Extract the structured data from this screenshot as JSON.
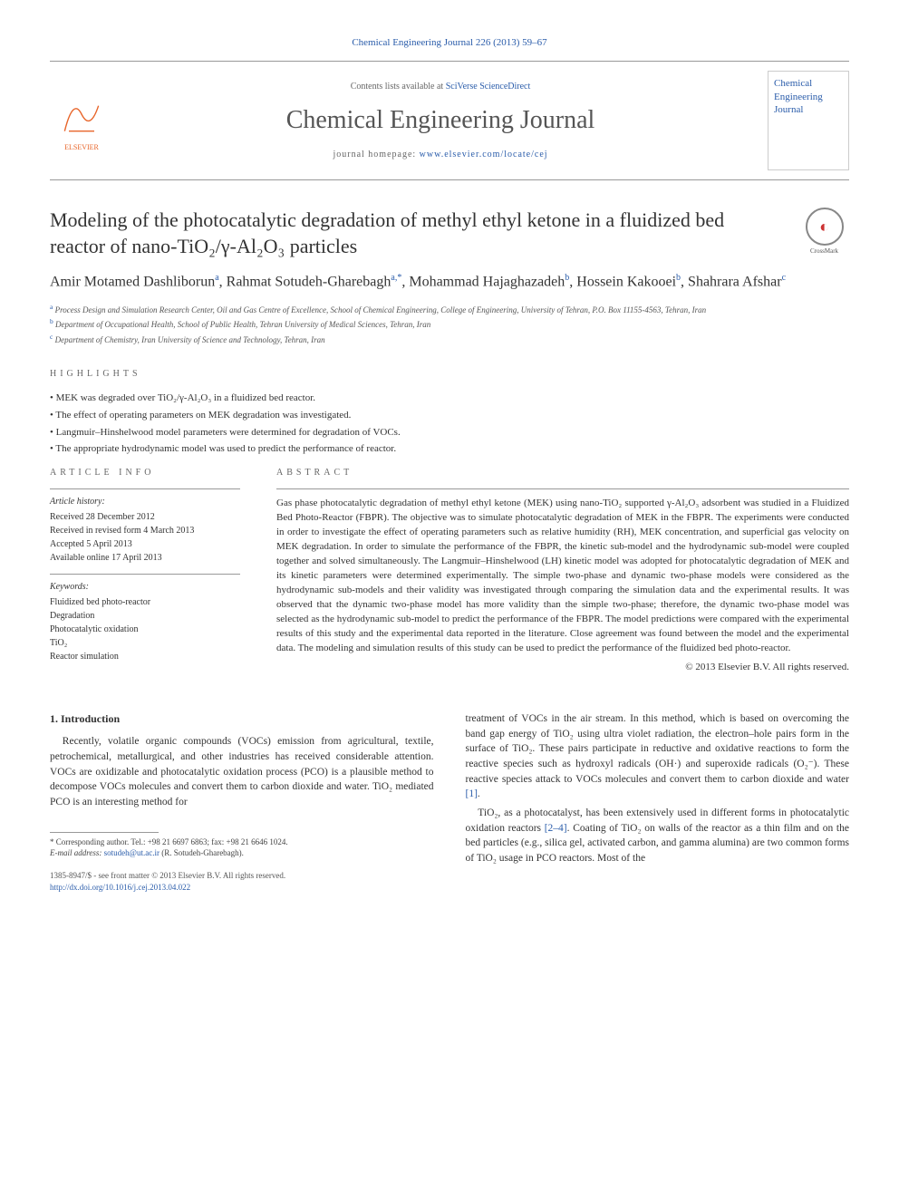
{
  "header": {
    "citation": "Chemical Engineering Journal 226 (2013) 59–67",
    "contents_prefix": "Contents lists available at ",
    "contents_link": "SciVerse ScienceDirect",
    "journal_name": "Chemical Engineering Journal",
    "homepage_prefix": "journal homepage: ",
    "homepage_link": "www.elsevier.com/locate/cej",
    "publisher_logo": "ELSEVIER",
    "cover_text": "Chemical\nEngineering\nJournal"
  },
  "crossmark_label": "CrossMark",
  "title": "Modeling of the photocatalytic degradation of methyl ethyl ketone in a fluidized bed reactor of nano-TiO₂/γ-Al₂O₃ particles",
  "authors_html": "Amir Motamed Dashliborun<sup>a</sup>, Rahmat Sotudeh-Gharebagh<sup>a,*</sup>, Mohammad Hajaghazadeh<sup>b</sup>, Hossein Kakooei<sup>b</sup>, Shahrara Afshar<sup>c</sup>",
  "affiliations": [
    {
      "sup": "a",
      "text": "Process Design and Simulation Research Center, Oil and Gas Centre of Excellence, School of Chemical Engineering, College of Engineering, University of Tehran, P.O. Box 11155-4563, Tehran, Iran"
    },
    {
      "sup": "b",
      "text": "Department of Occupational Health, School of Public Health, Tehran University of Medical Sciences, Tehran, Iran"
    },
    {
      "sup": "c",
      "text": "Department of Chemistry, Iran University of Science and Technology, Tehran, Iran"
    }
  ],
  "section_labels": {
    "highlights": "HIGHLIGHTS",
    "article_info": "ARTICLE INFO",
    "abstract": "ABSTRACT"
  },
  "highlights": [
    "MEK was degraded over TiO₂/γ-Al₂O₃ in a fluidized bed reactor.",
    "The effect of operating parameters on MEK degradation was investigated.",
    "Langmuir–Hinshelwood model parameters were determined for degradation of VOCs.",
    "The appropriate hydrodynamic model was used to predict the performance of reactor."
  ],
  "article_info": {
    "history_label": "Article history:",
    "history": [
      "Received 28 December 2012",
      "Received in revised form 4 March 2013",
      "Accepted 5 April 2013",
      "Available online 17 April 2013"
    ],
    "keywords_label": "Keywords:",
    "keywords": [
      "Fluidized bed photo-reactor",
      "Degradation",
      "Photocatalytic oxidation",
      "TiO₂",
      "Reactor simulation"
    ]
  },
  "abstract_text": "Gas phase photocatalytic degradation of methyl ethyl ketone (MEK) using nano-TiO₂ supported γ-Al₂O₃ adsorbent was studied in a Fluidized Bed Photo-Reactor (FBPR). The objective was to simulate photocatalytic degradation of MEK in the FBPR. The experiments were conducted in order to investigate the effect of operating parameters such as relative humidity (RH), MEK concentration, and superficial gas velocity on MEK degradation. In order to simulate the performance of the FBPR, the kinetic sub-model and the hydrodynamic sub-model were coupled together and solved simultaneously. The Langmuir–Hinshelwood (LH) kinetic model was adopted for photocatalytic degradation of MEK and its kinetic parameters were determined experimentally. The simple two-phase and dynamic two-phase models were considered as the hydrodynamic sub-models and their validity was investigated through comparing the simulation data and the experimental results. It was observed that the dynamic two-phase model has more validity than the simple two-phase; therefore, the dynamic two-phase model was selected as the hydrodynamic sub-model to predict the performance of the FBPR. The model predictions were compared with the experimental results of this study and the experimental data reported in the literature. Close agreement was found between the model and the experimental data. The modeling and simulation results of this study can be used to predict the performance of the fluidized bed photo-reactor.",
  "copyright": "© 2013 Elsevier B.V. All rights reserved.",
  "intro": {
    "heading": "1. Introduction",
    "col1": "Recently, volatile organic compounds (VOCs) emission from agricultural, textile, petrochemical, metallurgical, and other industries has received considerable attention. VOCs are oxidizable and photocatalytic oxidation process (PCO) is a plausible method to decompose VOCs molecules and convert them to carbon dioxide and water. TiO₂ mediated PCO is an interesting method for",
    "col2_p1": "treatment of VOCs in the air stream. In this method, which is based on overcoming the band gap energy of TiO₂ using ultra violet radiation, the electron–hole pairs form in the surface of TiO₂. These pairs participate in reductive and oxidative reactions to form the reactive species such as hydroxyl radicals (OH·) and superoxide radicals (O₂⁻). These reactive species attack to VOCs molecules and convert them to carbon dioxide and water [1].",
    "col2_p2": "TiO₂, as a photocatalyst, has been extensively used in different forms in photocatalytic oxidation reactors [2–4]. Coating of TiO₂ on walls of the reactor as a thin film and on the bed particles (e.g., silica gel, activated carbon, and gamma alumina) are two common forms of TiO₂ usage in PCO reactors. Most of the"
  },
  "footnote": {
    "corr": "* Corresponding author. Tel.: +98 21 6697 6863; fax: +98 21 6646 1024.",
    "email_label": "E-mail address:",
    "email": "sotudeh@ut.ac.ir",
    "email_tail": "(R. Sotudeh-Gharebagh)."
  },
  "doi": {
    "issn": "1385-8947/$ - see front matter © 2013 Elsevier B.V. All rights reserved.",
    "link": "http://dx.doi.org/10.1016/j.cej.2013.04.022"
  },
  "colors": {
    "link": "#2a5caa",
    "elsevier_orange": "#e8652a",
    "text": "#333333",
    "rule": "#999999"
  }
}
